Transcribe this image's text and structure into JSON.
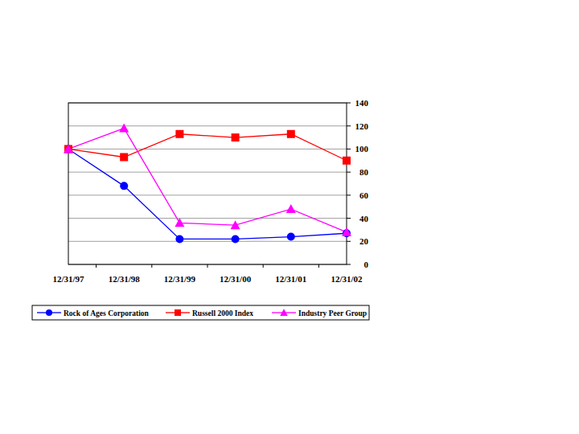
{
  "chart_data": {
    "type": "line",
    "categories": [
      "12/31/97",
      "12/31/98",
      "12/31/99",
      "12/31/00",
      "12/31/01",
      "12/31/02"
    ],
    "series": [
      {
        "name": "Rock of Ages Corporation",
        "color": "#0000ff",
        "marker": "circle",
        "values": [
          100,
          68,
          22,
          22,
          24,
          27
        ]
      },
      {
        "name": "Russell 2000 Index",
        "color": "#ff0000",
        "marker": "square",
        "values": [
          100,
          93,
          113,
          110,
          113,
          90
        ]
      },
      {
        "name": "Industry Peer Group",
        "color": "#ff00ff",
        "marker": "triangle",
        "values": [
          100,
          118,
          36,
          34,
          48,
          28
        ]
      }
    ],
    "ylim": [
      0,
      140
    ],
    "yticks": [
      0,
      20,
      40,
      60,
      80,
      100,
      120,
      140
    ],
    "grid": true,
    "legend": "bottom"
  }
}
